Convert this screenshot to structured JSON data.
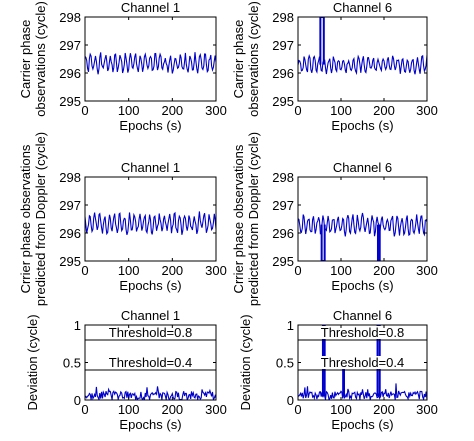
{
  "chart_data": [
    {
      "type": "line",
      "title": "Channel 1",
      "xlabel": "Epochs (s)",
      "ylabel": [
        "Carrier phase",
        "observations (cycle)"
      ],
      "xlim": [
        0,
        300
      ],
      "ylim": [
        295,
        298
      ],
      "xticks": [
        0,
        100,
        200,
        300
      ],
      "yticks": [
        295,
        296,
        297,
        298
      ],
      "series": [
        {
          "color": "#0000cc",
          "base": 296.35,
          "amp": 0.28,
          "seed": 1
        }
      ],
      "spikes": []
    },
    {
      "type": "line",
      "title": "Channel 6",
      "xlabel": "Epochs (s)",
      "ylabel": [
        "Carrier phase",
        "observations (cycle)"
      ],
      "xlim": [
        0,
        300
      ],
      "ylim": [
        295,
        298
      ],
      "xticks": [
        0,
        100,
        200,
        300
      ],
      "yticks": [
        295,
        296,
        297,
        298
      ],
      "series": [
        {
          "color": "#0000cc",
          "base": 296.3,
          "amp": 0.25,
          "seed": 6
        }
      ],
      "spikes": [
        {
          "x": [
            52,
            60
          ],
          "y": 298
        }
      ]
    },
    {
      "type": "line",
      "title": "Channel 1",
      "xlabel": "Epochs (s)",
      "ylabel": [
        "Crrier phase observations",
        "predicted from Doppler (cycle)"
      ],
      "xlim": [
        0,
        300
      ],
      "ylim": [
        295,
        298
      ],
      "xticks": [
        0,
        100,
        200,
        300
      ],
      "yticks": [
        295,
        296,
        297,
        298
      ],
      "series": [
        {
          "color": "#0000cc",
          "base": 296.35,
          "amp": 0.3,
          "seed": 2
        }
      ],
      "spikes": []
    },
    {
      "type": "line",
      "title": "Channel 6",
      "xlabel": "Epochs (s)",
      "ylabel": [
        "Crrier phase observations",
        "predicted from Doppler (cycle)"
      ],
      "xlim": [
        0,
        300
      ],
      "ylim": [
        295,
        298
      ],
      "xticks": [
        0,
        100,
        200,
        300
      ],
      "yticks": [
        295,
        296,
        297,
        298
      ],
      "series": [
        {
          "color": "#0000cc",
          "base": 296.3,
          "amp": 0.3,
          "seed": 7
        }
      ],
      "spikes": [
        {
          "x": [
            55,
            62
          ],
          "y": 295
        },
        {
          "x": [
            186,
            190
          ],
          "y": 295
        }
      ]
    },
    {
      "type": "line",
      "title": "Channel 1",
      "xlabel": "Epochs (s)",
      "ylabel": [
        "Deviation (cycle)"
      ],
      "xlim": [
        0,
        300
      ],
      "ylim": [
        0,
        1
      ],
      "xticks": [
        0,
        100,
        200,
        300
      ],
      "yticks": [
        0,
        0.5,
        1
      ],
      "series": [
        {
          "color": "#0000cc",
          "base": 0.06,
          "amp": 0.06,
          "seed": 3,
          "kind": "noise"
        }
      ],
      "spikes": [],
      "thresholds": [
        {
          "value": 0.8,
          "label": "Threshold=0.8"
        },
        {
          "value": 0.4,
          "label": "Threshold=0.4"
        }
      ]
    },
    {
      "type": "line",
      "title": "Channel 6",
      "xlabel": "Epochs (s)",
      "ylabel": [
        "Deviation (cycle)"
      ],
      "xlim": [
        0,
        300
      ],
      "ylim": [
        0,
        1
      ],
      "xticks": [
        0,
        100,
        200,
        300
      ],
      "yticks": [
        0,
        0.5,
        1
      ],
      "series": [
        {
          "color": "#0000cc",
          "base": 0.06,
          "amp": 0.06,
          "seed": 8,
          "kind": "noise"
        }
      ],
      "spikes": [
        {
          "x": [
            58,
            62
          ],
          "y": 1
        },
        {
          "x": [
            105,
            107
          ],
          "y": 0.55
        },
        {
          "x": [
            185,
            190
          ],
          "y": 1
        }
      ],
      "thresholds": [
        {
          "value": 0.8,
          "label": "Threshold=0.8"
        },
        {
          "value": 0.4,
          "label": "Threshold=0.4"
        }
      ]
    }
  ]
}
